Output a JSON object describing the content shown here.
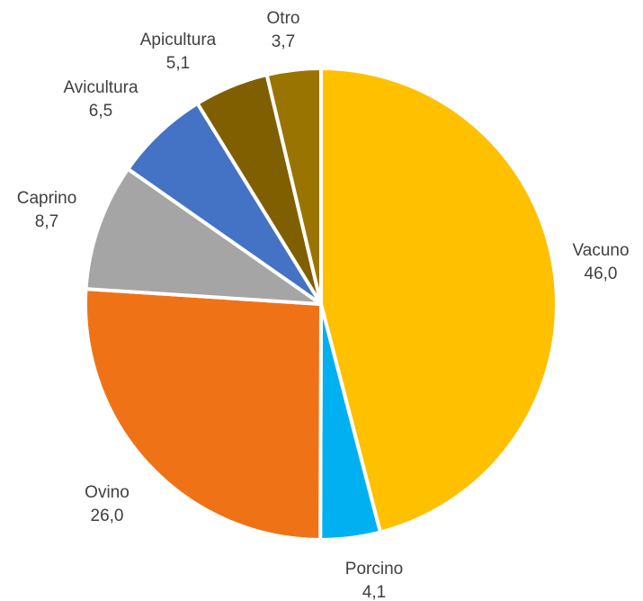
{
  "chart_data": {
    "type": "pie",
    "title": "",
    "categories": [
      "Vacuno",
      "Porcino",
      "Ovino",
      "Caprino",
      "Avicultura",
      "Apicultura",
      "Otro"
    ],
    "values": [
      46.0,
      4.1,
      26.0,
      8.7,
      6.5,
      5.1,
      3.7
    ],
    "value_labels": [
      "46,0",
      "4,1",
      "26,0",
      "8,7",
      "6,5",
      "5,1",
      "3,7"
    ],
    "colors": [
      "#FFC000",
      "#00B0F0",
      "#F07217",
      "#A5A5A5",
      "#4472C4",
      "#7F5F00",
      "#9A7400"
    ],
    "legend": "none",
    "start_angle": "12 o'clock",
    "direction": "clockwise"
  }
}
